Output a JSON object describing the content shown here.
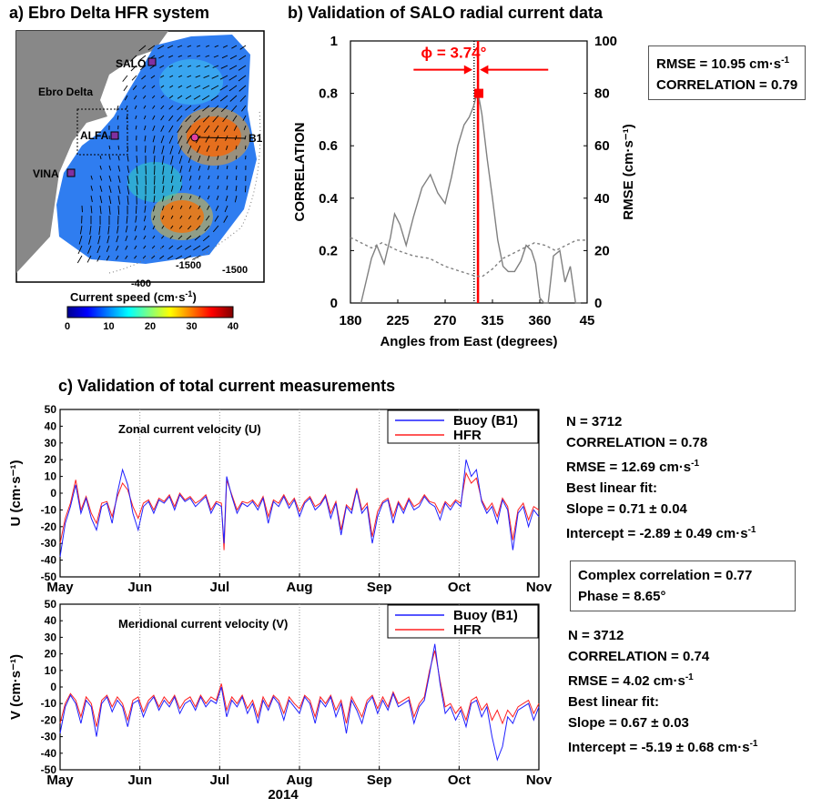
{
  "panel_a": {
    "title": "a) Ebro Delta HFR system",
    "stations": [
      "SALO",
      "ALFA",
      "VINA"
    ],
    "buoy_label": "B1",
    "region_label": "Ebro Delta",
    "isobaths": [
      "-1500",
      "-400",
      "-1500"
    ],
    "colorbar_title": "Current speed (cm·s",
    "colorbar_title_sup": "-1",
    "colorbar_title_end": ")",
    "colorbar_ticks": [
      "0",
      "10",
      "20",
      "30",
      "40"
    ]
  },
  "panel_b": {
    "title": "b) Validation of SALO radial current data",
    "phi_label": "ϕ = 3.74°",
    "stats": {
      "rmse": "RMSE = 10.95 cm·s",
      "rmse_sup": "-1",
      "correlation": "CORRELATION = 0.79"
    }
  },
  "panel_c": {
    "title": "c) Validation of total current measurements",
    "complex": {
      "correlation": "Complex correlation = 0.77",
      "phase": "Phase = 8.65°"
    },
    "u_stats": {
      "n": "N = 3712",
      "corr": "CORRELATION = 0.78",
      "rmse": "RMSE = 12.69 cm·s",
      "rmse_sup": "-1",
      "fit": "Best linear fit:",
      "slope": "Slope = 0.71 ± 0.04",
      "intercept": "Intercept = -2.89 ± 0.49 cm·s",
      "intercept_sup": "-1"
    },
    "v_stats": {
      "n": "N = 3712",
      "corr": "CORRELATION = 0.74",
      "rmse": "RMSE = 4.02 cm·s",
      "rmse_sup": "-1",
      "fit": "Best linear fit:",
      "slope": "Slope = 0.67 ± 0.03",
      "intercept": "Intercept = -5.19 ± 0.68 cm·s",
      "intercept_sup": "-1"
    }
  },
  "colors": {
    "buoy": "#1f1fff",
    "hfr": "#ff2020",
    "highlight": "#ff0000",
    "corr_line": "#808080"
  },
  "chart_data": [
    {
      "type": "line",
      "title": "b) Validation of SALO radial current data",
      "xlabel": "Angles from East (degrees)",
      "ylabel": "CORRELATION",
      "y2label": "RMSE (cm·s-1)",
      "xticks": [
        "180",
        "225",
        "270",
        "315",
        "360",
        "45"
      ],
      "xlim": [
        180,
        405
      ],
      "ylim": [
        0,
        1
      ],
      "y2lim": [
        0,
        100
      ],
      "yticks": [
        "0",
        "0.2",
        "0.4",
        "0.6",
        "0.8",
        "1"
      ],
      "y2ticks": [
        "0",
        "20",
        "40",
        "60",
        "80",
        "100"
      ],
      "vlines": [
        {
          "x": 297.5,
          "style": "dotted"
        },
        {
          "x": 301.24,
          "style": "red"
        }
      ],
      "marker": {
        "x": 302,
        "y": 0.8
      },
      "series": [
        {
          "role": "correlation",
          "style": "solid",
          "x": [
            190,
            200,
            205,
            212,
            218,
            222,
            227,
            233,
            240,
            248,
            256,
            263,
            270,
            276,
            282,
            288,
            293,
            297,
            301,
            305,
            310,
            315,
            320,
            325,
            330,
            336,
            342,
            347,
            352,
            356,
            360,
            364,
            368,
            373,
            379,
            384,
            389,
            394,
            399
          ],
          "y": [
            0.0,
            0.17,
            0.22,
            0.15,
            0.25,
            0.34,
            0.3,
            0.22,
            0.33,
            0.44,
            0.49,
            0.42,
            0.38,
            0.48,
            0.6,
            0.68,
            0.71,
            0.75,
            0.81,
            0.72,
            0.55,
            0.4,
            0.24,
            0.14,
            0.12,
            0.12,
            0.16,
            0.22,
            0.2,
            0.15,
            0.02,
            0.0,
            0.0,
            0.18,
            0.2,
            0.08,
            0.14,
            0.0,
            0.0
          ]
        },
        {
          "role": "rmse",
          "style": "dotted",
          "x": [
            180,
            190,
            200,
            210,
            225,
            240,
            255,
            270,
            285,
            297,
            305,
            315,
            325,
            335,
            345,
            355,
            365,
            375,
            385,
            395,
            405
          ],
          "y": [
            25,
            23,
            21,
            23,
            20,
            18,
            17,
            14,
            12,
            10.5,
            10,
            13,
            17,
            19,
            21,
            23,
            22,
            20,
            22,
            24,
            24
          ]
        }
      ]
    },
    {
      "type": "line",
      "title": "Zonal current velocity (U)",
      "ylabel": "U (cm·s-1)",
      "xlabel": "",
      "xticks": [
        "May",
        "Jun",
        "Jul",
        "Aug",
        "Sep",
        "Oct",
        "Nov"
      ],
      "yticks": [
        "50",
        "40",
        "30",
        "20",
        "10",
        "0",
        "-10",
        "-20",
        "-30",
        "-40",
        "-50"
      ],
      "ylim": [
        -50,
        50
      ],
      "x_days_range": [
        0,
        184
      ],
      "series": [
        {
          "name": "Buoy (B1)",
          "x": [
            0,
            2,
            4,
            6,
            8,
            10,
            12,
            14,
            16,
            18,
            20,
            22,
            24,
            26,
            28,
            30,
            32,
            34,
            36,
            38,
            40,
            42,
            44,
            46,
            48,
            50,
            52,
            54,
            56,
            58,
            60,
            62,
            63,
            64,
            66,
            68,
            70,
            72,
            74,
            76,
            78,
            80,
            82,
            84,
            86,
            88,
            90,
            92,
            94,
            96,
            98,
            100,
            102,
            104,
            106,
            108,
            110,
            112,
            114,
            116,
            118,
            120,
            122,
            124,
            126,
            128,
            130,
            132,
            134,
            136,
            138,
            140,
            142,
            144,
            146,
            148,
            150,
            152,
            154,
            156,
            158,
            160,
            162,
            164,
            166,
            168,
            170,
            172,
            174,
            176,
            178,
            180,
            182,
            184
          ],
          "y": [
            -38,
            -18,
            -8,
            5,
            -12,
            -3,
            -15,
            -22,
            -8,
            -6,
            -18,
            0,
            14,
            5,
            -12,
            -22,
            -8,
            -5,
            -12,
            -4,
            -6,
            -2,
            -10,
            -1,
            -5,
            -3,
            -8,
            -5,
            -2,
            -12,
            -6,
            -8,
            -30,
            10,
            -2,
            -12,
            -6,
            -8,
            -5,
            -10,
            -3,
            -18,
            -5,
            -8,
            -2,
            -9,
            -4,
            -14,
            -6,
            -3,
            -10,
            -7,
            -2,
            -15,
            -6,
            -25,
            -8,
            -12,
            2,
            -12,
            -8,
            -30,
            -14,
            -6,
            -4,
            -18,
            -6,
            -12,
            -4,
            -10,
            -8,
            -2,
            -6,
            -8,
            -16,
            -6,
            -10,
            -5,
            -8,
            20,
            10,
            14,
            -5,
            -12,
            -8,
            -18,
            -4,
            -10,
            -34,
            -12,
            -8,
            -20,
            -10,
            -14
          ]
        },
        {
          "name": "HFR",
          "x": [
            0,
            2,
            4,
            6,
            8,
            10,
            12,
            14,
            16,
            18,
            20,
            22,
            24,
            26,
            28,
            30,
            32,
            34,
            36,
            38,
            40,
            42,
            44,
            46,
            48,
            50,
            52,
            54,
            56,
            58,
            60,
            62,
            63,
            64,
            66,
            68,
            70,
            72,
            74,
            76,
            78,
            80,
            82,
            84,
            86,
            88,
            90,
            92,
            94,
            96,
            98,
            100,
            102,
            104,
            106,
            108,
            110,
            112,
            114,
            116,
            118,
            120,
            122,
            124,
            126,
            128,
            130,
            132,
            134,
            136,
            138,
            140,
            142,
            144,
            146,
            148,
            150,
            152,
            154,
            156,
            158,
            160,
            162,
            164,
            166,
            168,
            170,
            172,
            174,
            176,
            178,
            180,
            182,
            184
          ],
          "y": [
            -30,
            -15,
            -6,
            8,
            -10,
            -2,
            -12,
            -18,
            -6,
            -5,
            -14,
            -2,
            6,
            2,
            -8,
            -15,
            -6,
            -4,
            -10,
            -3,
            -5,
            -1,
            -8,
            0,
            -4,
            -2,
            -6,
            -4,
            -1,
            -10,
            -5,
            -6,
            -34,
            8,
            -1,
            -10,
            -5,
            -6,
            -4,
            -8,
            -2,
            -14,
            -4,
            -6,
            -1,
            -7,
            -3,
            -11,
            -5,
            -2,
            -8,
            -6,
            -1,
            -12,
            -5,
            -22,
            -7,
            -10,
            3,
            -10,
            -6,
            -26,
            -11,
            -5,
            -3,
            -14,
            -5,
            -10,
            -3,
            -8,
            -6,
            -1,
            -5,
            -6,
            -12,
            -5,
            -8,
            -4,
            -6,
            12,
            6,
            9,
            -4,
            -10,
            -6,
            -14,
            -3,
            -8,
            -28,
            -10,
            -6,
            -16,
            -8,
            -10
          ]
        }
      ],
      "legend": "top-right"
    },
    {
      "type": "line",
      "title": "Meridional current velocity (V)",
      "ylabel": "V (cm·s-1)",
      "xlabel": "2014",
      "xticks": [
        "May",
        "Jun",
        "Jul",
        "Aug",
        "Sep",
        "Oct",
        "Nov"
      ],
      "yticks": [
        "50",
        "40",
        "30",
        "20",
        "10",
        "0",
        "-10",
        "-20",
        "-30",
        "-40",
        "-50"
      ],
      "ylim": [
        -50,
        50
      ],
      "x_days_range": [
        0,
        184
      ],
      "series": [
        {
          "name": "Buoy (B1)",
          "x": [
            0,
            2,
            4,
            6,
            8,
            10,
            12,
            14,
            16,
            18,
            20,
            22,
            24,
            26,
            28,
            30,
            32,
            34,
            36,
            38,
            40,
            42,
            44,
            46,
            48,
            50,
            52,
            54,
            56,
            58,
            60,
            62,
            64,
            66,
            68,
            70,
            72,
            74,
            76,
            78,
            80,
            82,
            84,
            86,
            88,
            90,
            92,
            94,
            96,
            98,
            100,
            102,
            104,
            106,
            108,
            110,
            112,
            114,
            116,
            118,
            120,
            122,
            124,
            126,
            128,
            130,
            132,
            134,
            136,
            138,
            140,
            142,
            144,
            146,
            148,
            150,
            152,
            154,
            156,
            158,
            160,
            162,
            164,
            166,
            168,
            170,
            172,
            174,
            176,
            178,
            180,
            182,
            184
          ],
          "y": [
            -28,
            -12,
            -5,
            -10,
            -22,
            -8,
            -12,
            -30,
            -10,
            -6,
            -15,
            -8,
            -12,
            -24,
            -10,
            -8,
            -18,
            -10,
            -6,
            -14,
            -8,
            -12,
            -6,
            -16,
            -10,
            -8,
            -14,
            -6,
            -12,
            -8,
            -10,
            0,
            -18,
            -8,
            -12,
            -6,
            -16,
            -10,
            -22,
            -8,
            -14,
            -6,
            -10,
            -20,
            -8,
            -12,
            -16,
            -6,
            -10,
            -22,
            -8,
            -12,
            -6,
            -18,
            -10,
            -28,
            -8,
            -14,
            -22,
            -10,
            -6,
            -16,
            -8,
            -14,
            -4,
            -12,
            -10,
            -8,
            -22,
            -12,
            -8,
            8,
            26,
            2,
            -16,
            -12,
            -20,
            -14,
            -24,
            -10,
            -8,
            -18,
            -12,
            -30,
            -44,
            -36,
            -18,
            -22,
            -14,
            -12,
            -10,
            -20,
            -12
          ]
        },
        {
          "name": "HFR",
          "x": [
            0,
            2,
            4,
            6,
            8,
            10,
            12,
            14,
            16,
            18,
            20,
            22,
            24,
            26,
            28,
            30,
            32,
            34,
            36,
            38,
            40,
            42,
            44,
            46,
            48,
            50,
            52,
            54,
            56,
            58,
            60,
            62,
            64,
            66,
            68,
            70,
            72,
            74,
            76,
            78,
            80,
            82,
            84,
            86,
            88,
            90,
            92,
            94,
            96,
            98,
            100,
            102,
            104,
            106,
            108,
            110,
            112,
            114,
            116,
            118,
            120,
            122,
            124,
            126,
            128,
            130,
            132,
            134,
            136,
            138,
            140,
            142,
            144,
            146,
            148,
            150,
            152,
            154,
            156,
            158,
            160,
            162,
            164,
            166,
            168,
            170,
            172,
            174,
            176,
            178,
            180,
            182,
            184
          ],
          "y": [
            -22,
            -10,
            -4,
            -8,
            -18,
            -6,
            -10,
            -24,
            -8,
            -5,
            -12,
            -6,
            -10,
            -20,
            -8,
            -6,
            -15,
            -8,
            -5,
            -12,
            -6,
            -10,
            -5,
            -13,
            -8,
            -6,
            -12,
            -5,
            -10,
            -6,
            -8,
            2,
            -14,
            -6,
            -10,
            -5,
            -13,
            -8,
            -18,
            -6,
            -12,
            -5,
            -8,
            -16,
            -6,
            -10,
            -13,
            -5,
            -8,
            -18,
            -6,
            -10,
            -5,
            -14,
            -8,
            -22,
            -6,
            -12,
            -18,
            -8,
            -5,
            -13,
            -6,
            -12,
            -3,
            -10,
            -8,
            -6,
            -18,
            -10,
            -6,
            10,
            22,
            4,
            -12,
            -10,
            -16,
            -12,
            -20,
            -8,
            -6,
            -14,
            -10,
            -20,
            -14,
            -22,
            -14,
            -18,
            -12,
            -10,
            -8,
            -16,
            -10
          ]
        }
      ],
      "legend": "top-right"
    }
  ]
}
